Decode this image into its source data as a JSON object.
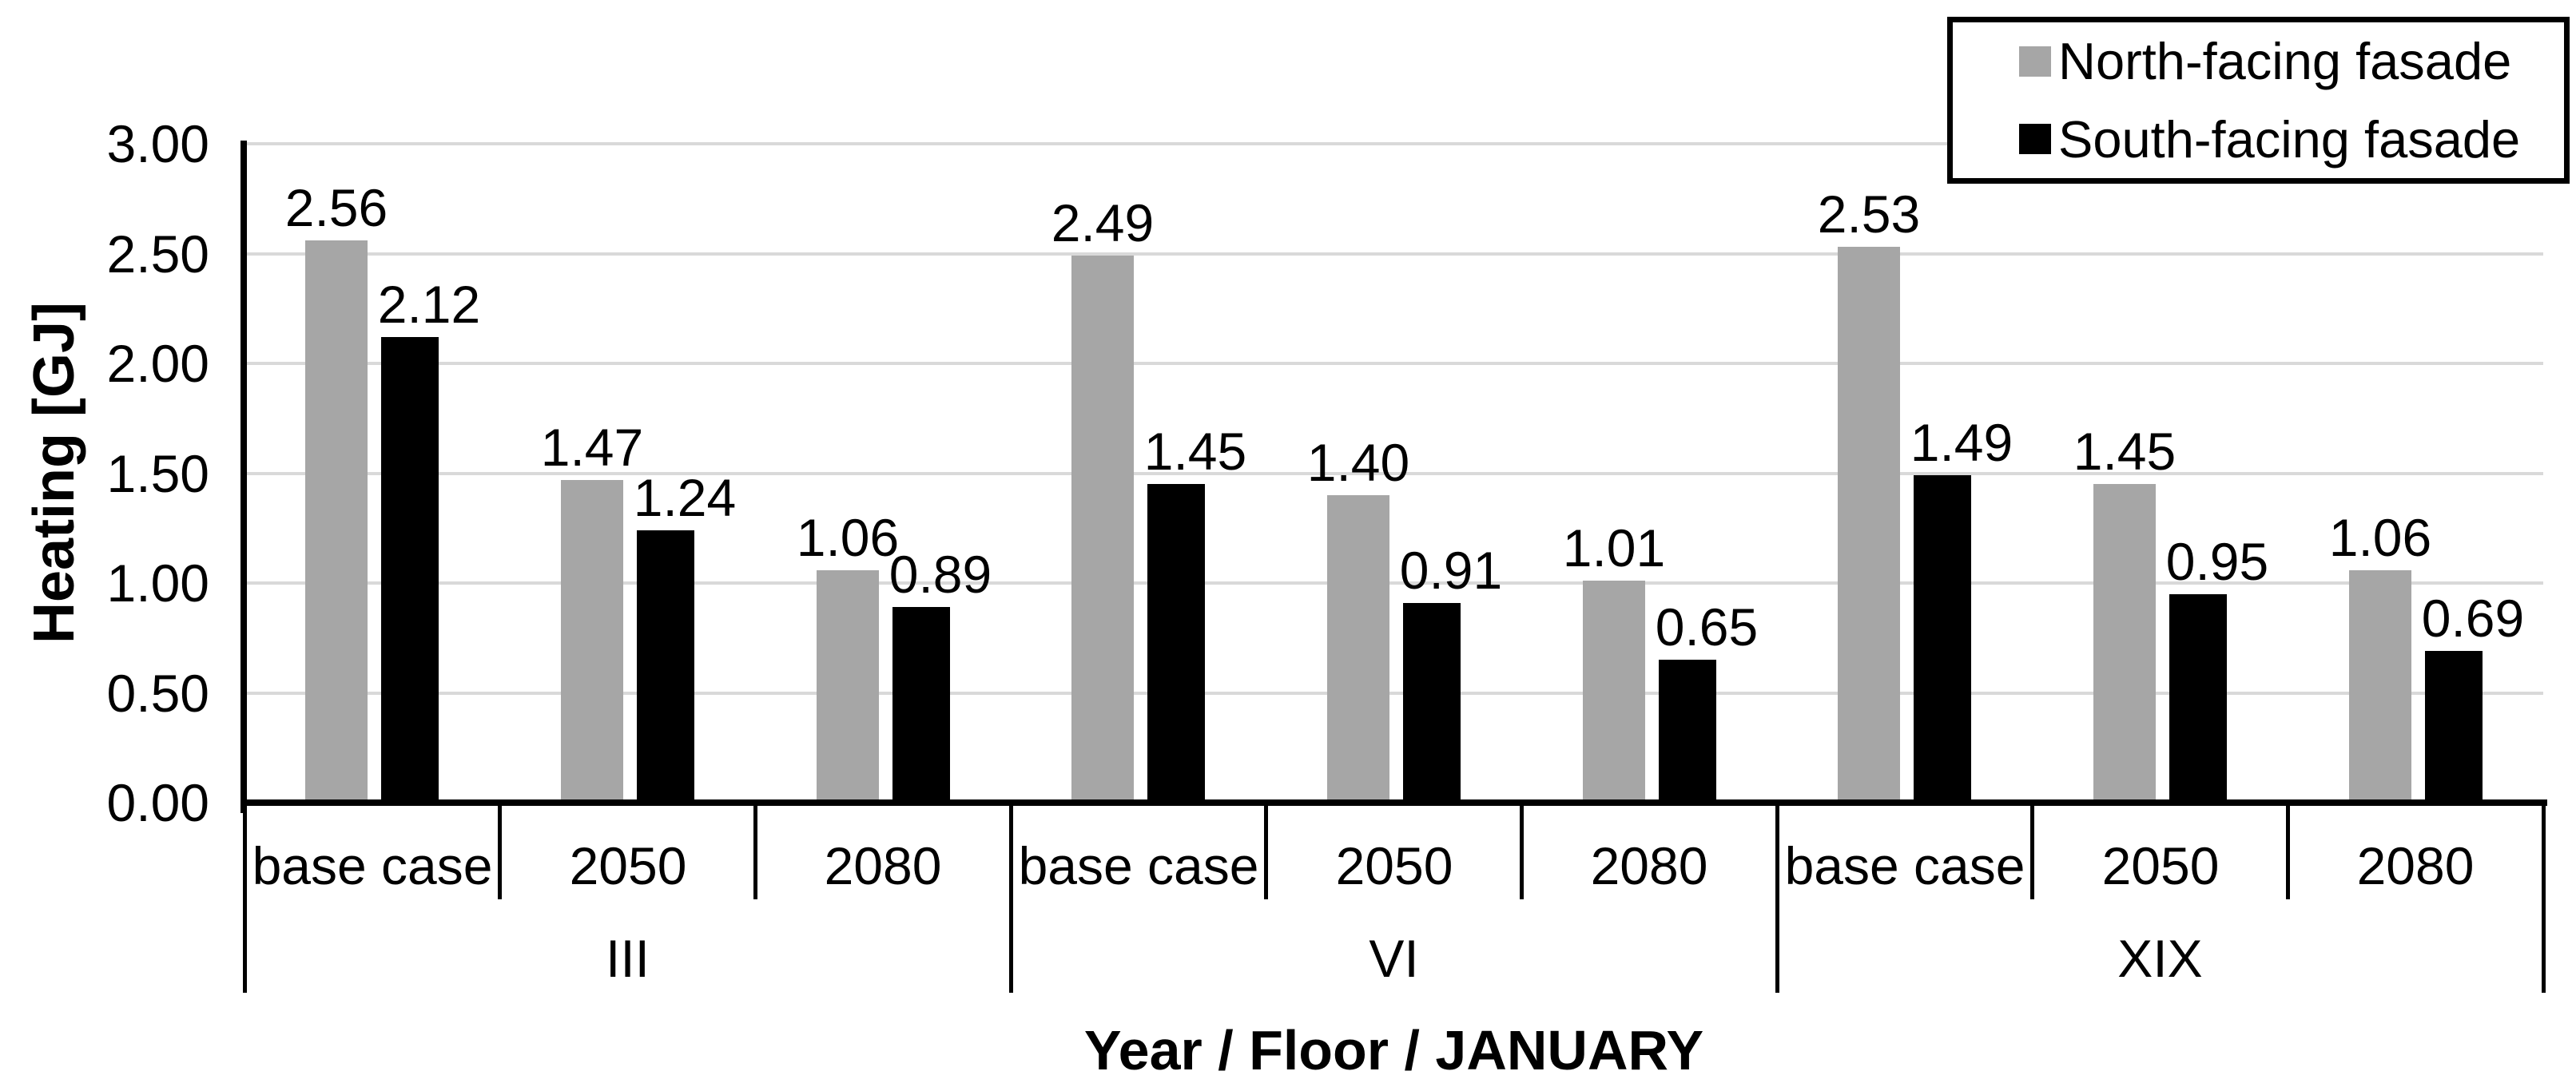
{
  "chart_data": {
    "type": "bar",
    "title": "",
    "ylabel": "Heating [GJ]",
    "xlabel": "Year / Floor / JANUARY",
    "ylim": [
      0,
      3
    ],
    "ytick_step": 0.5,
    "ytick_labels": [
      "0.00",
      "0.50",
      "1.00",
      "1.50",
      "2.00",
      "2.50",
      "3.00"
    ],
    "grid": true,
    "gridline_color": "#d9d9d9",
    "axis_color": "#000000",
    "legend_position": "top-right",
    "groups": [
      "III",
      "VI",
      "XIX"
    ],
    "categories": [
      "base case",
      "2050",
      "2080"
    ],
    "series": [
      {
        "name": "North-facing fasade",
        "color": "#a6a6a6",
        "values": [
          2.56,
          1.47,
          1.06,
          2.49,
          1.4,
          1.01,
          2.53,
          1.45,
          1.06
        ]
      },
      {
        "name": "South-facing fasade",
        "color": "#000000",
        "values": [
          2.12,
          1.24,
          0.89,
          1.45,
          0.91,
          0.65,
          1.49,
          0.95,
          0.69
        ]
      }
    ],
    "value_label_format": "0.00"
  }
}
